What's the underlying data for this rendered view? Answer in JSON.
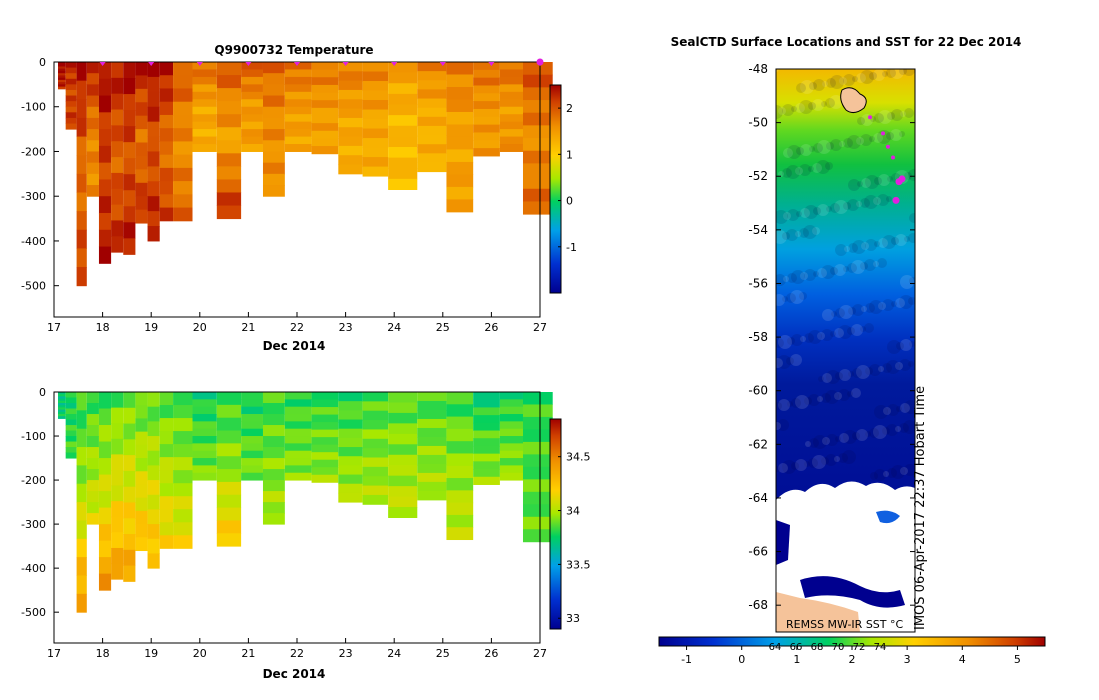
{
  "chart_data": [
    {
      "type": "heatmap",
      "title": "Q9900732  Temperature",
      "xlabel": "Dec 2014",
      "ylabel": "",
      "x_ticks": [
        "17",
        "18",
        "19",
        "20",
        "21",
        "22",
        "23",
        "24",
        "25",
        "26",
        "27"
      ],
      "y_ticks": [
        "0",
        "-100",
        "-200",
        "-300",
        "-400",
        "-500"
      ],
      "xlim": [
        17,
        27
      ],
      "ylim": [
        -570,
        0
      ],
      "colorbar": {
        "ticks": [
          "2",
          "1",
          "0",
          "-1"
        ],
        "range": [
          -2,
          2.5
        ]
      },
      "profiles": [
        {
          "t": 17.1,
          "depth": 60,
          "top": 2.5,
          "mid": 2.4,
          "bottom": 2.3
        },
        {
          "t": 17.38,
          "depth": 150,
          "top": 2.3,
          "mid": 2.1,
          "bottom": 2.2
        },
        {
          "t": 17.55,
          "depth": 500,
          "top": 2.5,
          "mid": 1.8,
          "bottom": 2.2
        },
        {
          "t": 17.8,
          "depth": 300,
          "top": 2.4,
          "mid": 1.7,
          "bottom": 1.6
        },
        {
          "t": 18.05,
          "depth": 450,
          "top": 2.5,
          "mid": 2.1,
          "bottom": 2.4
        },
        {
          "t": 18.3,
          "depth": 425,
          "top": 2.4,
          "mid": 1.9,
          "bottom": 2.3
        },
        {
          "t": 18.55,
          "depth": 430,
          "top": 2.5,
          "mid": 2.0,
          "bottom": 2.4
        },
        {
          "t": 18.8,
          "depth": 360,
          "top": 2.4,
          "mid": 1.8,
          "bottom": 2.3
        },
        {
          "t": 19.05,
          "depth": 400,
          "top": 2.5,
          "mid": 2.0,
          "bottom": 2.4
        },
        {
          "t": 19.3,
          "depth": 355,
          "top": 2.5,
          "mid": 1.8,
          "bottom": 2.2
        },
        {
          "t": 19.6,
          "depth": 355,
          "top": 2.0,
          "mid": 1.6,
          "bottom": 1.9
        },
        {
          "t": 20.1,
          "depth": 200,
          "top": 1.9,
          "mid": 1.4,
          "bottom": 1.3
        },
        {
          "t": 20.6,
          "depth": 350,
          "top": 2.0,
          "mid": 1.4,
          "bottom": 2.3
        },
        {
          "t": 21.1,
          "depth": 200,
          "top": 2.0,
          "mid": 1.5,
          "bottom": 1.5
        },
        {
          "t": 21.5,
          "depth": 300,
          "top": 1.9,
          "mid": 1.6,
          "bottom": 1.6
        },
        {
          "t": 22.0,
          "depth": 200,
          "top": 1.9,
          "mid": 1.5,
          "bottom": 1.4
        },
        {
          "t": 22.6,
          "depth": 205,
          "top": 1.8,
          "mid": 1.5,
          "bottom": 1.4
        },
        {
          "t": 23.1,
          "depth": 250,
          "top": 1.8,
          "mid": 1.4,
          "bottom": 1.3
        },
        {
          "t": 23.6,
          "depth": 255,
          "top": 1.7,
          "mid": 1.4,
          "bottom": 1.3
        },
        {
          "t": 24.15,
          "depth": 285,
          "top": 1.5,
          "mid": 1.2,
          "bottom": 1.2
        },
        {
          "t": 24.8,
          "depth": 245,
          "top": 1.7,
          "mid": 1.3,
          "bottom": 1.3
        },
        {
          "t": 25.35,
          "depth": 335,
          "top": 1.8,
          "mid": 1.4,
          "bottom": 1.5
        },
        {
          "t": 25.9,
          "depth": 210,
          "top": 1.9,
          "mid": 1.5,
          "bottom": 1.5
        },
        {
          "t": 26.45,
          "depth": 200,
          "top": 1.9,
          "mid": 1.5,
          "bottom": 1.6
        },
        {
          "t": 26.85,
          "depth": 340,
          "top": 2.1,
          "mid": 1.6,
          "bottom": 1.9
        }
      ]
    },
    {
      "type": "heatmap",
      "title": "",
      "xlabel": "Dec 2014",
      "ylabel": "",
      "x_ticks": [
        "17",
        "18",
        "19",
        "20",
        "21",
        "22",
        "23",
        "24",
        "25",
        "26",
        "27"
      ],
      "y_ticks": [
        "0",
        "-100",
        "-200",
        "-300",
        "-400",
        "-500"
      ],
      "xlim": [
        17,
        27
      ],
      "ylim": [
        -570,
        0
      ],
      "colorbar": {
        "ticks": [
          "34.5",
          "34",
          "33.5",
          "33"
        ],
        "range": [
          32.9,
          34.85
        ]
      },
      "profiles": [
        {
          "t": 17.1,
          "depth": 60,
          "top": 33.7,
          "mid": 33.72,
          "bottom": 33.75
        },
        {
          "t": 17.38,
          "depth": 150,
          "top": 33.75,
          "mid": 33.8,
          "bottom": 33.85
        },
        {
          "t": 17.55,
          "depth": 500,
          "top": 33.8,
          "mid": 34.0,
          "bottom": 34.45
        },
        {
          "t": 17.8,
          "depth": 300,
          "top": 33.82,
          "mid": 33.95,
          "bottom": 34.1
        },
        {
          "t": 18.05,
          "depth": 450,
          "top": 33.82,
          "mid": 34.05,
          "bottom": 34.45
        },
        {
          "t": 18.3,
          "depth": 425,
          "top": 33.85,
          "mid": 34.1,
          "bottom": 34.4
        },
        {
          "t": 18.55,
          "depth": 430,
          "top": 33.85,
          "mid": 34.1,
          "bottom": 34.4
        },
        {
          "t": 18.8,
          "depth": 360,
          "top": 33.85,
          "mid": 34.05,
          "bottom": 34.3
        },
        {
          "t": 19.05,
          "depth": 400,
          "top": 33.85,
          "mid": 34.05,
          "bottom": 34.3
        },
        {
          "t": 19.3,
          "depth": 355,
          "top": 33.85,
          "mid": 34.0,
          "bottom": 34.2
        },
        {
          "t": 19.6,
          "depth": 355,
          "top": 33.85,
          "mid": 33.95,
          "bottom": 34.15
        },
        {
          "t": 20.1,
          "depth": 200,
          "top": 33.75,
          "mid": 33.85,
          "bottom": 33.92
        },
        {
          "t": 20.6,
          "depth": 350,
          "top": 33.8,
          "mid": 33.95,
          "bottom": 34.25
        },
        {
          "t": 21.1,
          "depth": 200,
          "top": 33.75,
          "mid": 33.85,
          "bottom": 33.92
        },
        {
          "t": 21.5,
          "depth": 300,
          "top": 33.82,
          "mid": 33.9,
          "bottom": 34.0
        },
        {
          "t": 22.0,
          "depth": 200,
          "top": 33.8,
          "mid": 33.88,
          "bottom": 33.95
        },
        {
          "t": 22.6,
          "depth": 205,
          "top": 33.8,
          "mid": 33.88,
          "bottom": 33.95
        },
        {
          "t": 23.1,
          "depth": 250,
          "top": 33.8,
          "mid": 33.9,
          "bottom": 34.0
        },
        {
          "t": 23.6,
          "depth": 255,
          "top": 33.82,
          "mid": 33.92,
          "bottom": 34.0
        },
        {
          "t": 24.15,
          "depth": 285,
          "top": 33.85,
          "mid": 33.95,
          "bottom": 34.05
        },
        {
          "t": 24.8,
          "depth": 245,
          "top": 33.82,
          "mid": 33.92,
          "bottom": 34.0
        },
        {
          "t": 25.35,
          "depth": 335,
          "top": 33.82,
          "mid": 33.95,
          "bottom": 34.05
        },
        {
          "t": 25.9,
          "depth": 210,
          "top": 33.72,
          "mid": 33.85,
          "bottom": 33.95
        },
        {
          "t": 26.45,
          "depth": 200,
          "top": 33.78,
          "mid": 33.88,
          "bottom": 33.95
        },
        {
          "t": 26.85,
          "depth": 340,
          "top": 33.8,
          "mid": 33.85,
          "bottom": 33.88
        }
      ]
    },
    {
      "type": "heatmap",
      "title": "SealCTD Surface Locations and SST for 22 Dec 2014",
      "xlabel": "",
      "ylabel": "",
      "y_ticks": [
        "-48",
        "-50",
        "-52",
        "-54",
        "-56",
        "-58",
        "-60",
        "-62",
        "-64",
        "-66",
        "-68"
      ],
      "ylim": [
        -69,
        -48
      ],
      "timestamp": "IMOS 06-Apr-2017 22:37 Hobart Time",
      "source_label": "REMSS MW-IR SST °C",
      "colorbar": {
        "ticks": [
          "-1",
          "0",
          "1",
          "2",
          "3",
          "4",
          "5"
        ],
        "range": [
          -1.5,
          5.5
        ],
        "overlay_ticks": [
          "64",
          "66",
          "68",
          "70",
          "72",
          "74"
        ]
      },
      "track_latitudes": [
        -49.8,
        -50.4,
        -50.9,
        -51.3,
        -52.1,
        -52.2,
        -52.9
      ]
    }
  ]
}
